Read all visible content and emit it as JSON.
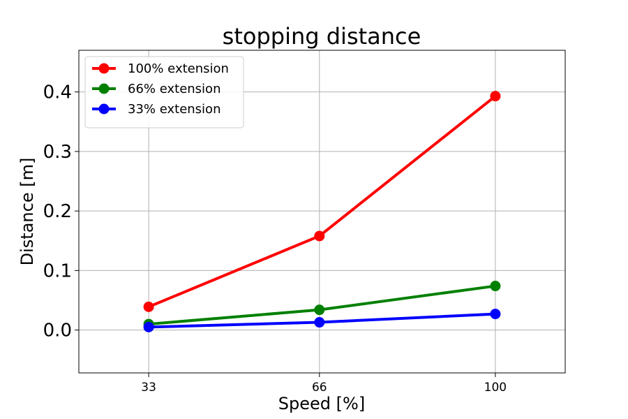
{
  "chart_data": {
    "type": "line",
    "title": "stopping distance",
    "xlabel": "Speed [%]",
    "ylabel": "Distance [m]",
    "x": [
      33,
      66,
      100
    ],
    "xticks": [
      "33",
      "66",
      "100"
    ],
    "yticks": [
      "0.0",
      "0.1",
      "0.2",
      "0.3",
      "0.4"
    ],
    "xlim": [
      19.5,
      113.5
    ],
    "ylim": [
      -0.072,
      0.47
    ],
    "grid": true,
    "legend_position": "top-left",
    "series": [
      {
        "name": "100% extension",
        "color": "#ff0000",
        "values": [
          0.039,
          0.158,
          0.393
        ]
      },
      {
        "name": "66% extension",
        "color": "#008000",
        "values": [
          0.01,
          0.034,
          0.074
        ]
      },
      {
        "name": "33% extension",
        "color": "#0000ff",
        "values": [
          0.005,
          0.013,
          0.027
        ]
      }
    ]
  }
}
